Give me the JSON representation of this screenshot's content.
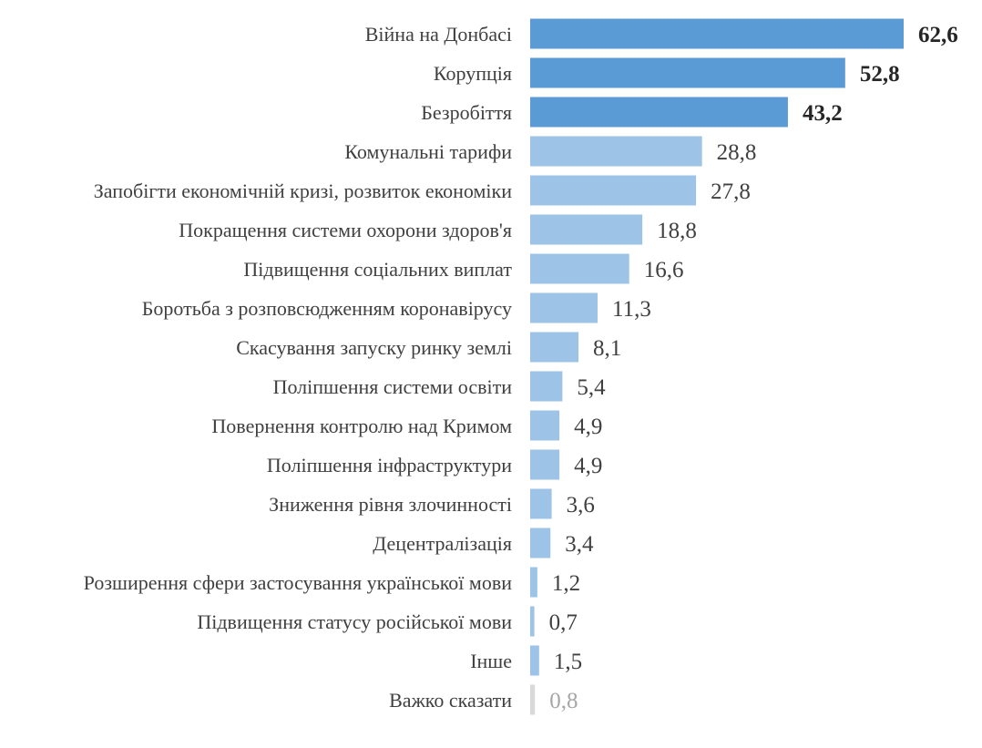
{
  "chart_data": {
    "type": "bar",
    "orientation": "horizontal",
    "categories": [
      "Війна на Донбасі",
      "Корупція",
      "Безробіття",
      "Комунальні тарифи",
      "Запобігти економічній кризі, розвиток економіки",
      "Покращення системи охорони здоров'я",
      "Підвищення соціальних виплат",
      "Боротьба з розповсюдженням коронавірусу",
      "Скасування запуску ринку землі",
      "Поліпшення системи освіти",
      "Повернення контролю над Кримом",
      "Поліпшення інфраструктури",
      "Зниження рівня злочинності",
      "Децентралізація",
      "Розширення сфери застосування української мови",
      "Підвищення статусу російської мови",
      "Інше",
      "Важко сказати"
    ],
    "values": [
      62.6,
      52.8,
      43.2,
      28.8,
      27.8,
      18.8,
      16.6,
      11.3,
      8.1,
      5.4,
      4.9,
      4.9,
      3.6,
      3.4,
      1.2,
      0.7,
      1.5,
      0.8
    ],
    "value_labels": [
      "62,6",
      "52,8",
      "43,2",
      "28,8",
      "27,8",
      "18,8",
      "16,6",
      "11,3",
      "8,1",
      "5,4",
      "4,9",
      "4,9",
      "3,6",
      "3,4",
      "1,2",
      "0,7",
      "1,5",
      "0,8"
    ],
    "highlight_count": 3,
    "xlim": [
      0,
      62.6
    ],
    "colors": {
      "highlight": "#5b9bd5",
      "normal": "#9dc3e6",
      "other": "#d9d9d9"
    },
    "grid": false,
    "legend": "none"
  }
}
